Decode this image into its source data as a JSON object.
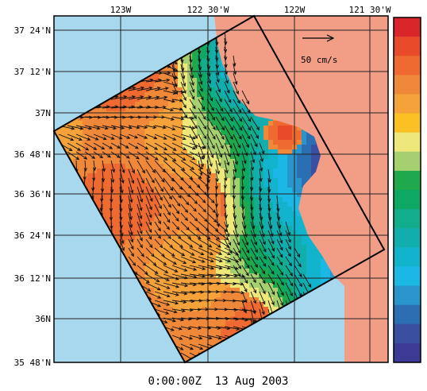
{
  "map": {
    "lon_labels": [
      "123W",
      "122 30'W",
      "122W",
      "121 30'W"
    ],
    "lat_labels": [
      "37 24'N",
      "37 12'N",
      "37N",
      "36 48'N",
      "36 36'N",
      "36 24'N",
      "36 12'N",
      "36N",
      "35 48'N"
    ],
    "scale_label": "50 cm/s",
    "timestamp": "0:00:00Z  13 Aug 2003",
    "colors": {
      "ocean": "#a8d8ee",
      "land": "#f29e86",
      "grid": "#222222",
      "arrows": "#111111"
    },
    "colorbar": [
      "#d8262a",
      "#e84a2a",
      "#ee6a30",
      "#f0883a",
      "#f6a23a",
      "#fbc024",
      "#eee87a",
      "#a6d070",
      "#1fa84c",
      "#0ea865",
      "#11ad8d",
      "#12aeae",
      "#12b3cc",
      "#1bb8e6",
      "#2a95cc",
      "#2b6eb2",
      "#3a4fa0",
      "#3d3a95"
    ]
  }
}
